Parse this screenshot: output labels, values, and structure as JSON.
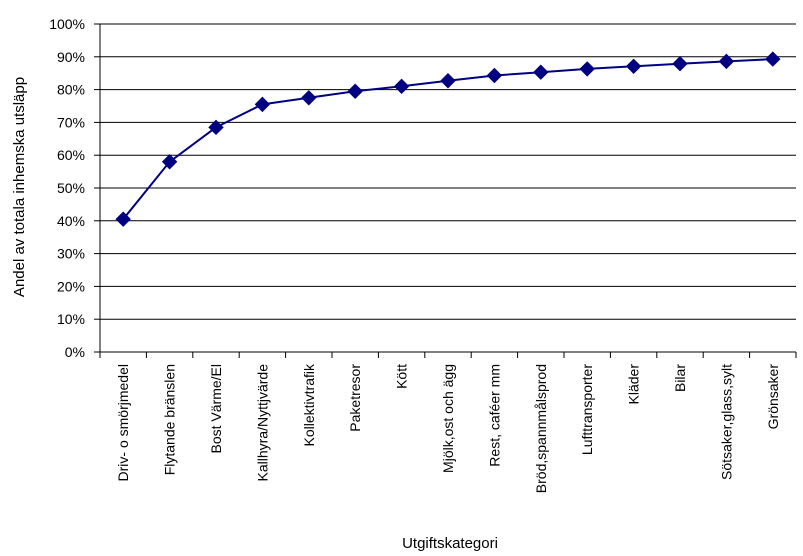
{
  "chart_data": {
    "type": "line",
    "title": "",
    "xlabel": "Utgiftskategori",
    "ylabel": "Andel av totala inhemska utsläpp",
    "ylim": [
      0,
      100
    ],
    "ytick_labels": [
      "0%",
      "10%",
      "20%",
      "30%",
      "40%",
      "50%",
      "60%",
      "70%",
      "80%",
      "90%",
      "100%"
    ],
    "categories": [
      "Driv- o smörjmedel",
      "Flytande bränslen",
      "Bost Värme/El",
      "Kallhyra/Nyttjvärde",
      "Kollektivtrafik",
      "Paketresor",
      "Kött",
      "Mjölk,ost och ägg",
      "Rest, caféer mm",
      "Bröd,spannmålsprod",
      "Lufttransporter",
      "Kläder",
      "Bilar",
      "Sötsaker,glass,sylt",
      "Grönsaker"
    ],
    "values": [
      40.5,
      58,
      68.5,
      75.5,
      77.5,
      79.5,
      81,
      82.7,
      84.3,
      85.3,
      86.3,
      87.1,
      87.9,
      88.6,
      89.3
    ],
    "grid": true,
    "legend": "none",
    "marker": "diamond",
    "line_color": "#000080",
    "marker_color": "#000080"
  }
}
